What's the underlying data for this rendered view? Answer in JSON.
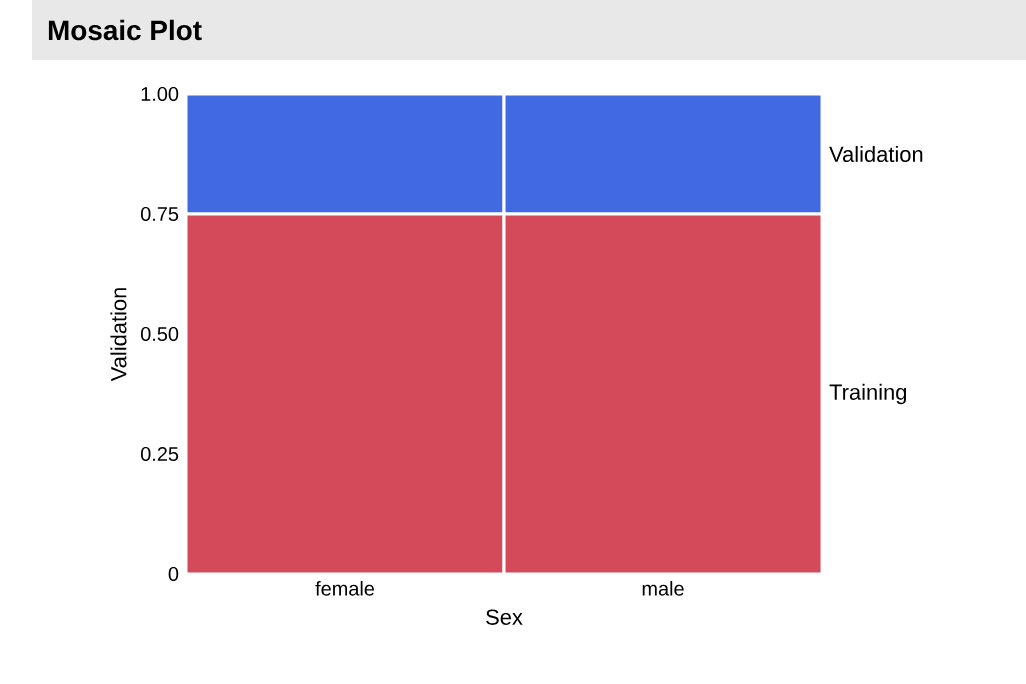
{
  "chart_data": {
    "type": "bar",
    "title": "Mosaic Plot",
    "xlabel": "Sex",
    "ylabel": "Validation",
    "stacked": true,
    "categories": [
      "female",
      "male"
    ],
    "series": [
      {
        "name": "Training",
        "color": "#d44a5a",
        "values": [
          0.75,
          0.75
        ]
      },
      {
        "name": "Validation",
        "color": "#4169e1",
        "values": [
          0.25,
          0.25
        ]
      }
    ],
    "ylim": [
      0,
      1
    ],
    "yticks": [
      0,
      0.25,
      {
        "value": 0.5,
        "label": "0.50"
      },
      0.75,
      {
        "value": 1,
        "label": "1.00"
      }
    ],
    "legend": false
  }
}
